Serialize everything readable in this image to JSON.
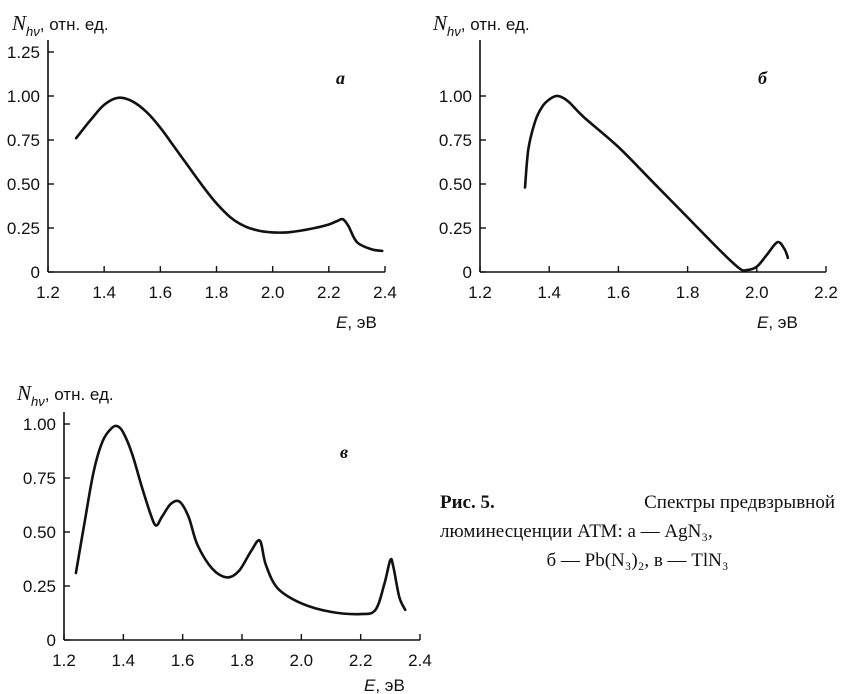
{
  "chart_data": [
    {
      "type": "line",
      "panel_letter": "а",
      "ylabel_symbol": "N",
      "ylabel_sub": "hν",
      "ylabel_unit": ", отн. ед.",
      "xlabel_symbol": "E",
      "xlabel_unit": ", эВ",
      "xlim": [
        1.2,
        2.4
      ],
      "ylim": [
        0,
        1.25
      ],
      "xticks": [
        "1.2",
        "1.4",
        "1.6",
        "1.8",
        "2.0",
        "2.2",
        "2.4"
      ],
      "yticks": [
        "0",
        "0.25",
        "0.50",
        "0.75",
        "1.00",
        "1.25"
      ],
      "grid": false,
      "x": [
        1.3,
        1.35,
        1.4,
        1.45,
        1.5,
        1.55,
        1.6,
        1.65,
        1.7,
        1.75,
        1.8,
        1.85,
        1.9,
        1.95,
        2.0,
        2.05,
        2.1,
        2.15,
        2.2,
        2.23,
        2.25,
        2.27,
        2.3,
        2.35,
        2.39
      ],
      "y": [
        0.76,
        0.86,
        0.95,
        0.99,
        0.97,
        0.91,
        0.82,
        0.71,
        0.6,
        0.49,
        0.39,
        0.31,
        0.26,
        0.235,
        0.225,
        0.225,
        0.235,
        0.25,
        0.27,
        0.29,
        0.3,
        0.26,
        0.17,
        0.13,
        0.12
      ]
    },
    {
      "type": "line",
      "panel_letter": "б",
      "ylabel_symbol": "N",
      "ylabel_sub": "hν",
      "ylabel_unit": ", отн. ед.",
      "xlabel_symbol": "E",
      "xlabel_unit": ", эВ",
      "xlim": [
        1.2,
        2.2
      ],
      "ylim": [
        0,
        1.25
      ],
      "xticks": [
        "1.2",
        "1.4",
        "1.6",
        "1.8",
        "2.0",
        "2.2"
      ],
      "yticks": [
        "0",
        "0.25",
        "0.50",
        "0.75",
        "1.00"
      ],
      "grid": false,
      "x": [
        1.33,
        1.34,
        1.36,
        1.38,
        1.4,
        1.42,
        1.44,
        1.46,
        1.5,
        1.6,
        1.7,
        1.8,
        1.9,
        1.95,
        1.97,
        2.0,
        2.03,
        2.06,
        2.08,
        2.09
      ],
      "y": [
        0.48,
        0.7,
        0.86,
        0.94,
        0.98,
        1.0,
        0.99,
        0.96,
        0.88,
        0.71,
        0.51,
        0.31,
        0.11,
        0.02,
        0.01,
        0.03,
        0.1,
        0.17,
        0.13,
        0.08
      ]
    },
    {
      "type": "line",
      "panel_letter": "в",
      "ylabel_symbol": "N",
      "ylabel_sub": "hν",
      "ylabel_unit": ", отн. ед.",
      "xlabel_symbol": "E",
      "xlabel_unit": ", эВ",
      "xlim": [
        1.2,
        2.4
      ],
      "ylim": [
        0,
        1.0
      ],
      "xticks": [
        "1.2",
        "1.4",
        "1.6",
        "1.8",
        "2.0",
        "2.2",
        "2.4"
      ],
      "yticks": [
        "0",
        "0.25",
        "0.50",
        "0.75",
        "1.00"
      ],
      "grid": false,
      "x": [
        1.24,
        1.27,
        1.3,
        1.33,
        1.36,
        1.38,
        1.4,
        1.43,
        1.46,
        1.49,
        1.51,
        1.53,
        1.56,
        1.59,
        1.62,
        1.65,
        1.7,
        1.75,
        1.79,
        1.83,
        1.86,
        1.88,
        1.92,
        2.0,
        2.1,
        2.2,
        2.25,
        2.28,
        2.3,
        2.31,
        2.33,
        2.35
      ],
      "y": [
        0.31,
        0.55,
        0.78,
        0.92,
        0.98,
        0.99,
        0.96,
        0.86,
        0.72,
        0.59,
        0.53,
        0.57,
        0.63,
        0.64,
        0.57,
        0.44,
        0.33,
        0.29,
        0.32,
        0.41,
        0.46,
        0.35,
        0.24,
        0.17,
        0.13,
        0.12,
        0.14,
        0.26,
        0.37,
        0.34,
        0.2,
        0.14
      ]
    }
  ],
  "caption": {
    "label": "Рис. 5.",
    "line1_text": "Спектры предвзрывной",
    "line2": "люминесценции АТМ: а — AgN₃,",
    "line3": "б — Pb(N₃)₂, в — TlN₃"
  }
}
